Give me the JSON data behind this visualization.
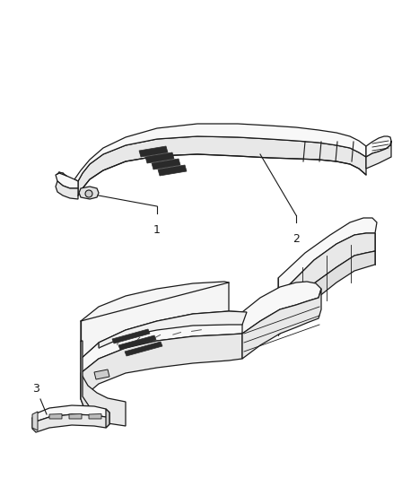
{
  "background_color": "#ffffff",
  "line_color": "#1a1a1a",
  "fill_top": "#f8f8f8",
  "fill_side": "#e8e8e8",
  "fill_dark": "#d0d0d0",
  "slot_color": "#2a2a2a",
  "fig_width": 4.38,
  "fig_height": 5.33,
  "dpi": 100,
  "label1": "1",
  "label2": "2",
  "label3": "3"
}
